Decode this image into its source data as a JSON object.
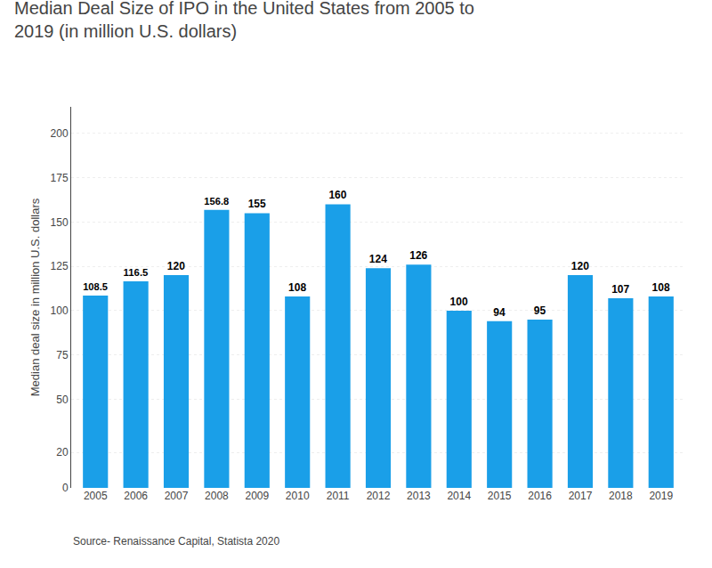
{
  "chart_data": {
    "type": "bar",
    "title": "Median Deal Size of IPO in the United States from 2005 to\n2019 (in million U.S. dollars)",
    "ylabel": "Median deal size in million U.S. dollars",
    "annotations": [
      "Source- Renaissance Capital, Statista 2020"
    ],
    "categories": [
      "2005",
      "2006",
      "2007",
      "2008",
      "2009",
      "2010",
      "2011",
      "2012",
      "2013",
      "2014",
      "2015",
      "2016",
      "2017",
      "2018",
      "2019"
    ],
    "values": [
      108.5,
      116.5,
      120,
      156.8,
      155,
      108,
      160,
      124,
      126,
      100,
      94,
      95,
      120,
      107,
      108
    ],
    "color": "#1A9FE8",
    "ylim": [
      0,
      215
    ],
    "yticks": [
      0,
      20,
      50,
      75,
      100,
      125,
      150,
      175,
      200
    ],
    "grid": true,
    "data_labels": true
  }
}
